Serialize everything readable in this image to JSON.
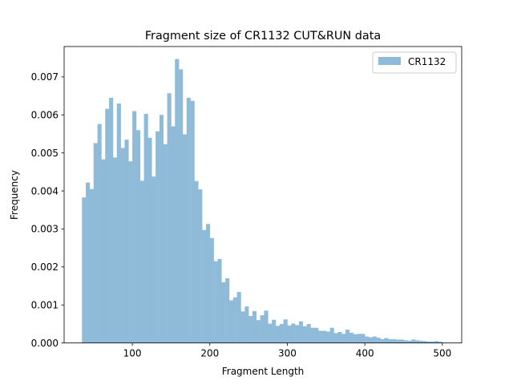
{
  "chart_data": {
    "type": "bar",
    "title": "Fragment size of CR1132 CUT&RUN data",
    "xlabel": "Fragment Length",
    "ylabel": "Frequency",
    "xlim": [
      12,
      525
    ],
    "ylim": [
      0,
      0.0078
    ],
    "xticks": [
      100,
      200,
      300,
      400,
      500
    ],
    "yticks": [
      "0.000",
      "0.001",
      "0.002",
      "0.003",
      "0.004",
      "0.005",
      "0.006",
      "0.007"
    ],
    "legend": {
      "label": "CR1132",
      "position": "top-right"
    },
    "color": "#8fbbd9",
    "bin_width": 5,
    "series": [
      {
        "name": "CR1132",
        "bin_starts": [
          35,
          40,
          45,
          50,
          55,
          60,
          65,
          70,
          75,
          80,
          85,
          90,
          95,
          100,
          105,
          110,
          115,
          120,
          125,
          130,
          135,
          140,
          145,
          150,
          155,
          160,
          165,
          170,
          175,
          180,
          185,
          190,
          195,
          200,
          205,
          210,
          215,
          220,
          225,
          230,
          235,
          240,
          245,
          250,
          255,
          260,
          265,
          270,
          275,
          280,
          285,
          290,
          295,
          300,
          305,
          310,
          315,
          320,
          325,
          330,
          335,
          340,
          345,
          350,
          355,
          360,
          365,
          370,
          375,
          380,
          385,
          390,
          395,
          400,
          405,
          410,
          415,
          420,
          425,
          430,
          435,
          440,
          445,
          450,
          455,
          460,
          465,
          470,
          475,
          480,
          485,
          490,
          495
        ],
        "values": [
          0.00383,
          0.00422,
          0.00405,
          0.00526,
          0.00576,
          0.00483,
          0.00616,
          0.00645,
          0.00488,
          0.0063,
          0.00513,
          0.00535,
          0.00478,
          0.0061,
          0.0056,
          0.00427,
          0.00603,
          0.0054,
          0.00438,
          0.00557,
          0.006,
          0.00523,
          0.00657,
          0.0057,
          0.00747,
          0.0072,
          0.00549,
          0.00645,
          0.00637,
          0.00426,
          0.00404,
          0.00297,
          0.00313,
          0.00276,
          0.00215,
          0.00221,
          0.0016,
          0.0017,
          0.00112,
          0.0012,
          0.00134,
          0.00083,
          0.00096,
          0.00071,
          0.00084,
          0.0006,
          0.00073,
          0.00085,
          0.00051,
          0.00061,
          0.00045,
          0.0005,
          0.00062,
          0.00046,
          0.00051,
          0.00047,
          0.00057,
          0.00044,
          0.0005,
          0.0004,
          0.0004,
          0.00032,
          0.00032,
          0.0003,
          0.0004,
          0.00026,
          0.00029,
          0.00024,
          0.00035,
          0.00027,
          0.00023,
          0.00024,
          0.00024,
          0.00017,
          0.00015,
          0.00017,
          0.00014,
          0.0001,
          0.00013,
          0.0001,
          0.0001,
          9e-05,
          9e-05,
          7e-05,
          6e-05,
          9e-05,
          7e-05,
          6e-05,
          5e-05,
          4e-05,
          4e-05,
          5e-05,
          3e-05
        ]
      }
    ]
  }
}
